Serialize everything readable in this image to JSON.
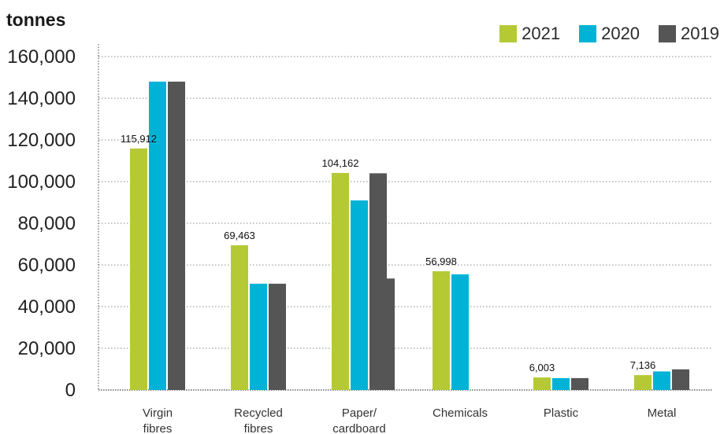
{
  "chart_data": {
    "type": "bar",
    "unit_label": "tonnes",
    "categories": [
      {
        "line1": "Virgin",
        "line2": "fibres"
      },
      {
        "line1": "Recycled",
        "line2": "fibres"
      },
      {
        "line1": "Paper/",
        "line2": "cardboard"
      },
      {
        "line1": "Chemicals",
        "line2": ""
      },
      {
        "line1": "Plastic",
        "line2": ""
      },
      {
        "line1": "Metal",
        "line2": ""
      }
    ],
    "series": [
      {
        "name": "2021",
        "color": "#b5c935",
        "values": [
          115912,
          69463,
          104162,
          56998,
          6003,
          7136
        ]
      },
      {
        "name": "2020",
        "color": "#00b3d6",
        "values": [
          148000,
          51000,
          91000,
          55500,
          5700,
          8900
        ]
      },
      {
        "name": "2019",
        "color": "#555555",
        "values": [
          148000,
          51000,
          104000,
          null,
          5700,
          9900
        ]
      }
    ],
    "extra_bar": {
      "category_index": 2,
      "value": 53500,
      "color": "#555555"
    },
    "data_labels": [
      "115,912",
      "69,463",
      "104,162",
      "56,998",
      "6,003",
      "7,136"
    ],
    "y_ticks": [
      {
        "value": 0,
        "label": "0"
      },
      {
        "value": 20000,
        "label": "20,000"
      },
      {
        "value": 40000,
        "label": "40,000"
      },
      {
        "value": 60000,
        "label": "60,000"
      },
      {
        "value": 80000,
        "label": "80,000"
      },
      {
        "value": 100000,
        "label": "100,000"
      },
      {
        "value": 120000,
        "label": "120,000"
      },
      {
        "value": 140000,
        "label": "140,000"
      },
      {
        "value": 160000,
        "label": "160,000"
      }
    ],
    "ylim": [
      0,
      160000
    ],
    "grid": true,
    "legend_position": "top-right"
  }
}
